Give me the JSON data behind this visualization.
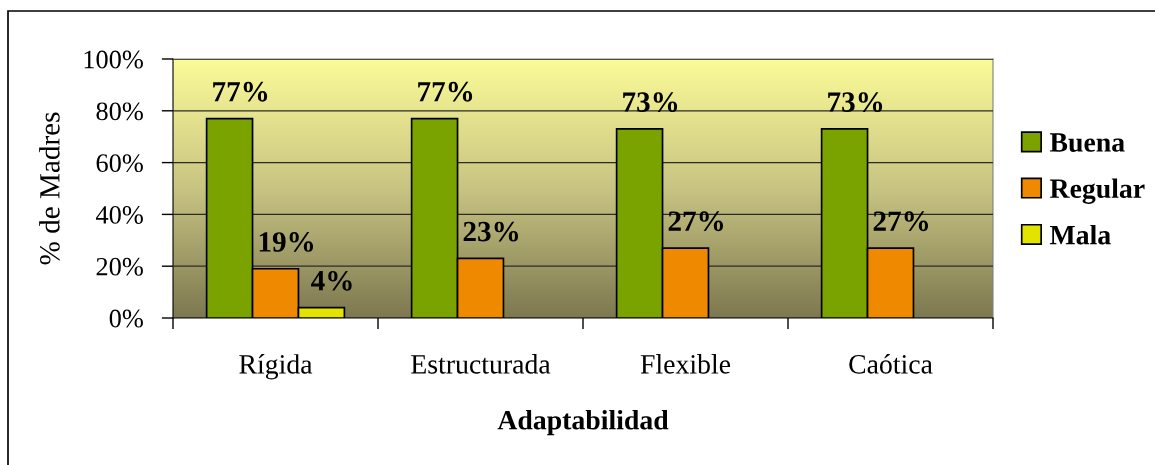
{
  "chart_data": {
    "type": "bar",
    "xlabel": "Adaptabilidad",
    "ylabel": "% de Madres",
    "categories": [
      "Rígida",
      "Estructurada",
      "Flexible",
      "Caótica"
    ],
    "series": [
      {
        "name": "Buena",
        "color": "#7aa300",
        "values": [
          77,
          77,
          73,
          73
        ],
        "value_labels": [
          "77%",
          "77%",
          "73%",
          "73%"
        ]
      },
      {
        "name": "Regular",
        "color": "#ef8a00",
        "values": [
          19,
          23,
          27,
          27
        ],
        "value_labels": [
          "19%",
          "23%",
          "27%",
          "27%"
        ]
      },
      {
        "name": "Mala",
        "color": "#e3e300",
        "values": [
          4,
          null,
          null,
          null
        ],
        "value_labels": [
          "4%",
          null,
          null,
          null
        ]
      }
    ],
    "ylim": [
      0,
      100
    ],
    "yticks": [
      {
        "value": 0,
        "label": "0%"
      },
      {
        "value": 20,
        "label": "20%"
      },
      {
        "value": 40,
        "label": "40%"
      },
      {
        "value": 60,
        "label": "60%"
      },
      {
        "value": 80,
        "label": "80%"
      },
      {
        "value": 100,
        "label": "100%"
      }
    ],
    "grid": "y",
    "legend": "right"
  }
}
